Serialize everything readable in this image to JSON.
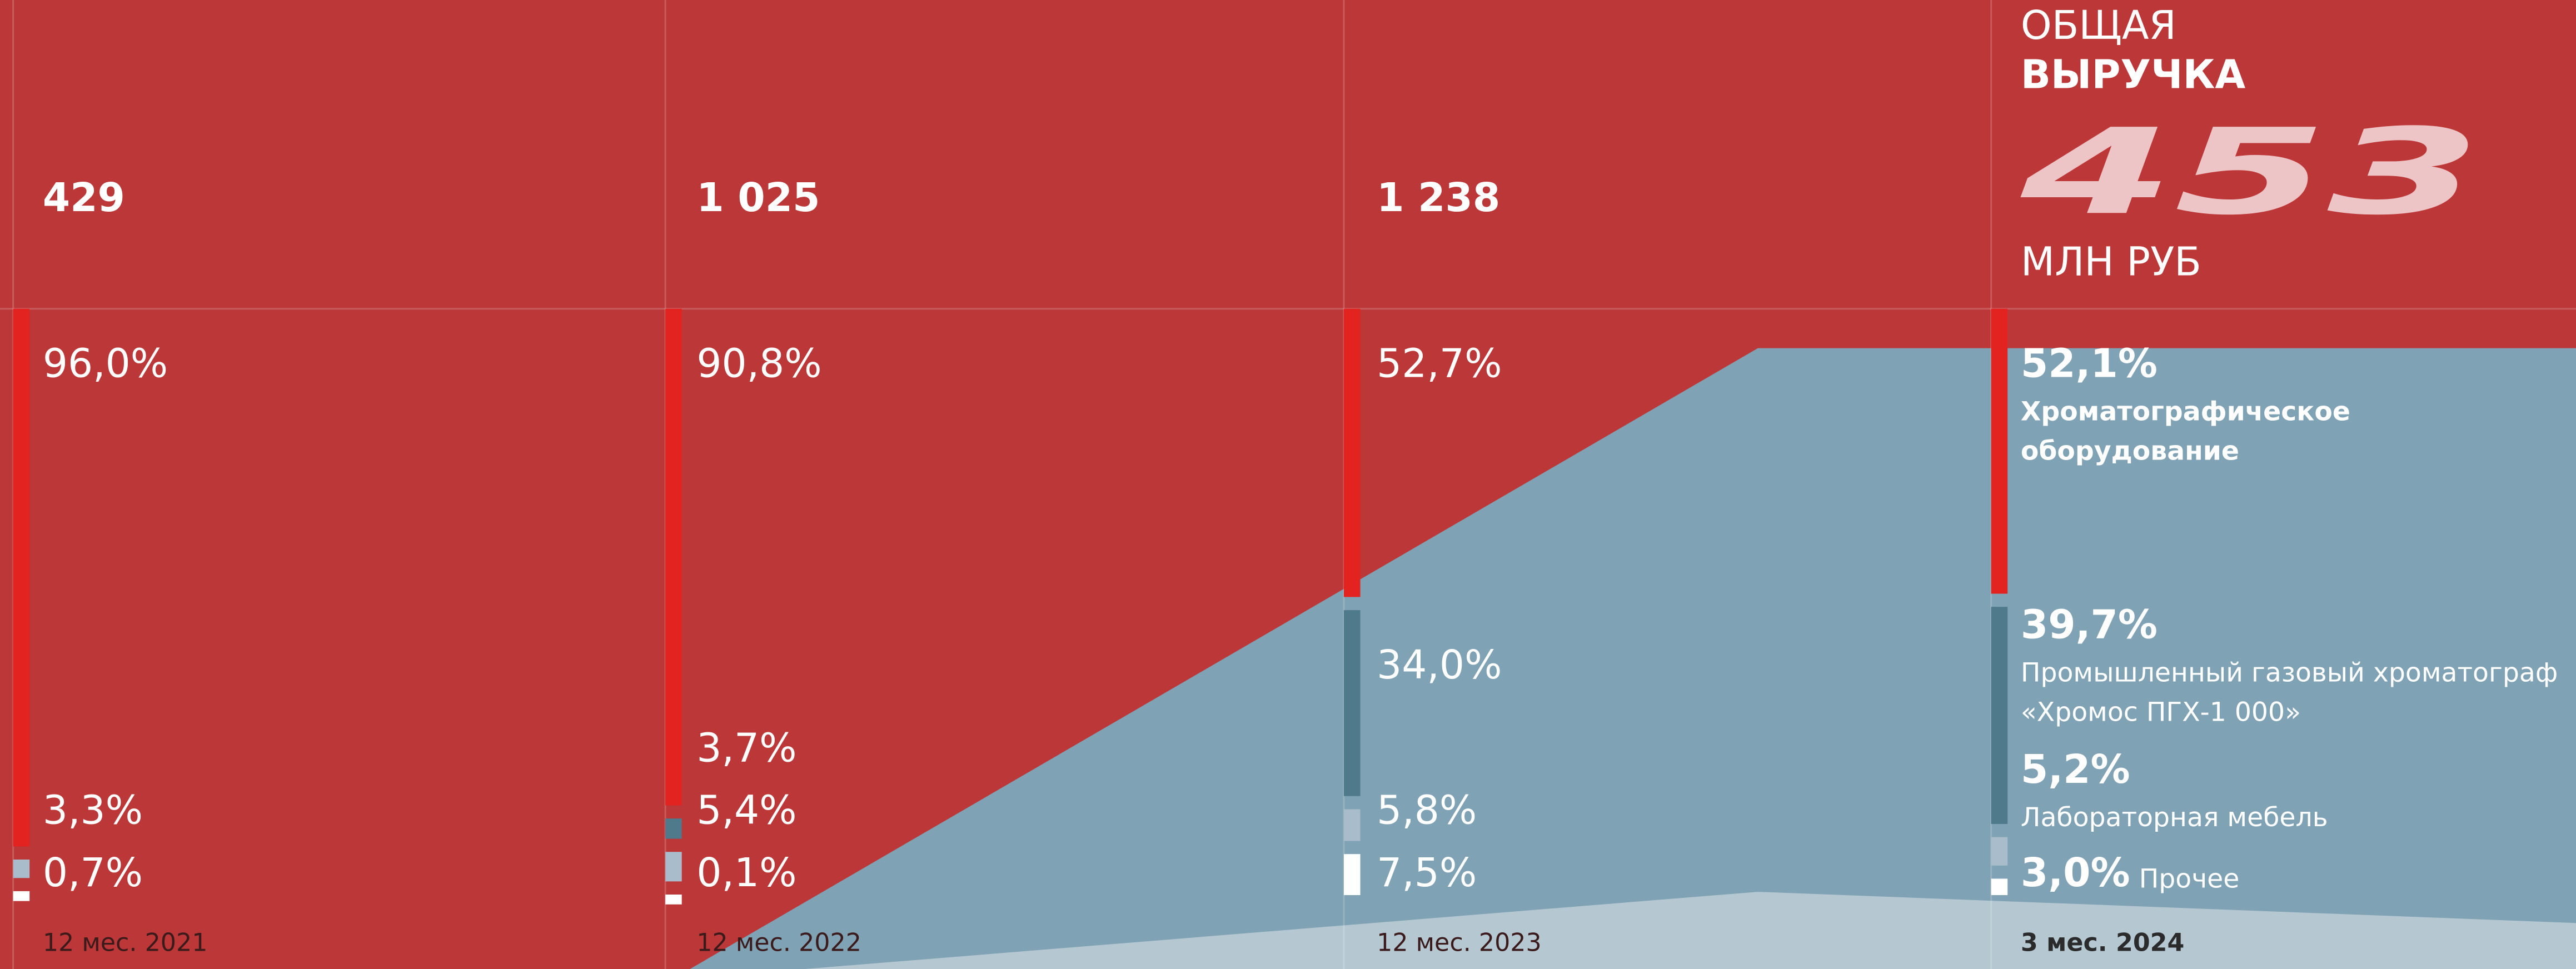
{
  "headline": {
    "line1": "ОБЩАЯ",
    "line2": "ВЫРУЧКА",
    "value": "453",
    "unit": "МЛН РУБ"
  },
  "chart_data": {
    "type": "stacked-columns",
    "periods": [
      {
        "label": "12 мес. 2021",
        "total": 429
      },
      {
        "label": "12 мес. 2022",
        "total": {
          "value": 1025,
          "label": "1 025"
        }
      },
      {
        "label": "12 мес. 2023",
        "total": {
          "value": 1238,
          "label": "1 238"
        }
      },
      {
        "label": "3 мес. 2024"
      }
    ],
    "series": [
      {
        "name": "Хроматографическое оборудование",
        "color": "#e3231f",
        "values": [
          96.0,
          90.8,
          52.7,
          52.1
        ],
        "value_labels": [
          "96,0%",
          "90,8%",
          "52,7%",
          "52,1%"
        ]
      },
      {
        "name": "Промышленный газовый хроматограф «Хромос ПГХ-1 000»",
        "color": "#4f7a8b",
        "values": [
          null,
          3.7,
          34.0,
          39.7
        ],
        "value_labels": [
          null,
          "3,7%",
          "34,0%",
          "39,7%"
        ]
      },
      {
        "name": "Лабораторная мебель",
        "color": "#a8bccb",
        "values": [
          3.3,
          5.4,
          5.8,
          5.2
        ],
        "value_labels": [
          "3,3%",
          "5,4%",
          "5,8%",
          "5,2%"
        ]
      },
      {
        "name": "Прочее",
        "color": "#ffffff",
        "values": [
          0.7,
          0.1,
          7.5,
          3.0
        ],
        "value_labels": [
          "0,7%",
          "0,1%",
          "7,5%",
          "3,0%"
        ]
      }
    ]
  }
}
